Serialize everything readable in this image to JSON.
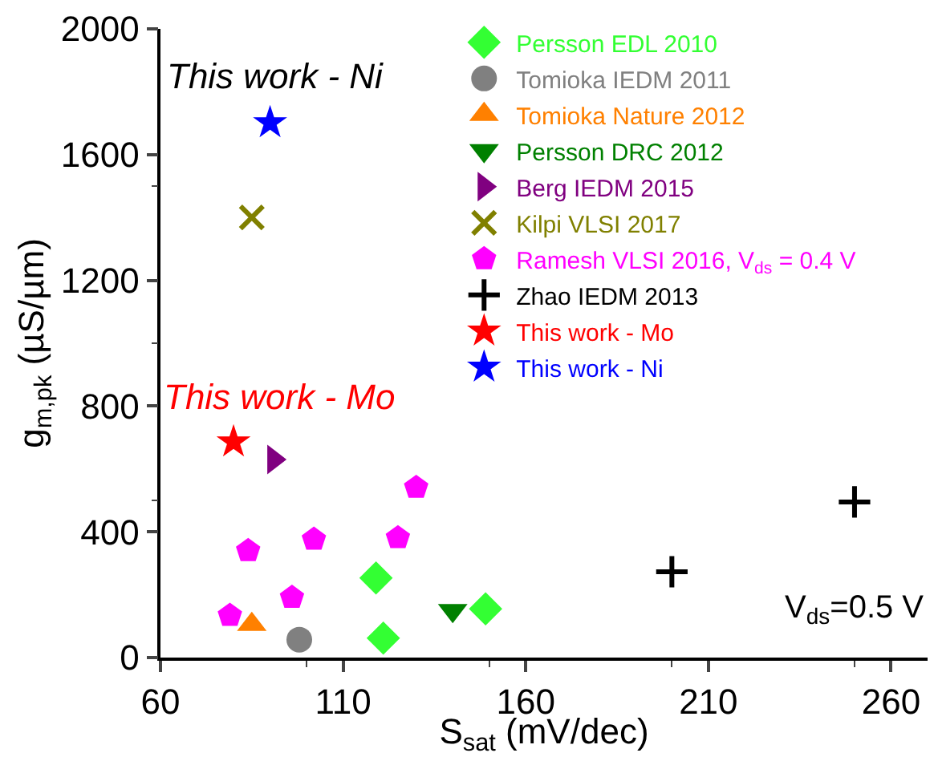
{
  "chart_data": {
    "type": "scatter",
    "xlabel": "S$_{sat}$ (mV/dec)",
    "ylabel": "g$_{m,pk}$ (µS/µm)",
    "xlim": [
      60,
      270
    ],
    "xticks": [
      60,
      110,
      160,
      210,
      260
    ],
    "ylim": [
      0,
      2000
    ],
    "yticks": [
      0,
      400,
      800,
      1200,
      1600,
      2000
    ],
    "legend": "top right",
    "series": [
      {
        "name": "Persson EDL 2010",
        "color": "#33ff33",
        "marker": "diamond",
        "x": [
          119,
          121,
          149
        ],
        "values": [
          253,
          62,
          155
        ]
      },
      {
        "name": "Tomioka IEDM 2011",
        "color": "#808080",
        "marker": "circle",
        "x": [
          98
        ],
        "values": [
          57
        ]
      },
      {
        "name": "Tomioka Nature 2012",
        "color": "#ff8000",
        "marker": "triangle",
        "x": [
          85
        ],
        "values": [
          105
        ]
      },
      {
        "name": "Persson DRC 2012",
        "color": "#008000",
        "marker": "triangle-down",
        "x": [
          140
        ],
        "values": [
          150
        ]
      },
      {
        "name": "Berg IEDM 2015",
        "color": "#800080",
        "marker": "triangle-right",
        "x": [
          91
        ],
        "values": [
          630
        ]
      },
      {
        "name": "Kilpi VLSI 2017",
        "color": "#808000",
        "marker": "x",
        "x": [
          85
        ],
        "values": [
          1400
        ]
      },
      {
        "name": "Ramesh VLSI 2016, V$_{ds}$ = 0.4 V",
        "color": "#ff00ff",
        "x": [
          79,
          84,
          96,
          102,
          125,
          130
        ],
        "values": [
          134,
          340,
          191,
          376,
          381,
          541
        ]
      },
      {
        "name": "Zhao IEDM 2013",
        "color": "#000000",
        "marker": "cross",
        "x": [
          200,
          250
        ],
        "values": [
          273,
          495
        ]
      },
      {
        "name": "This work - Mo",
        "color": "#ff0000",
        "marker": "star",
        "x": [
          80
        ],
        "values": [
          686
        ]
      },
      {
        "name": "This work - Ni",
        "color": "#0000ff",
        "marker": "star",
        "x": [
          90
        ],
        "values": [
          1701
        ]
      }
    ],
    "annotations": [
      "This work - Ni",
      "This work - Mo",
      "V$_{ds}$=0.5 V"
    ]
  }
}
